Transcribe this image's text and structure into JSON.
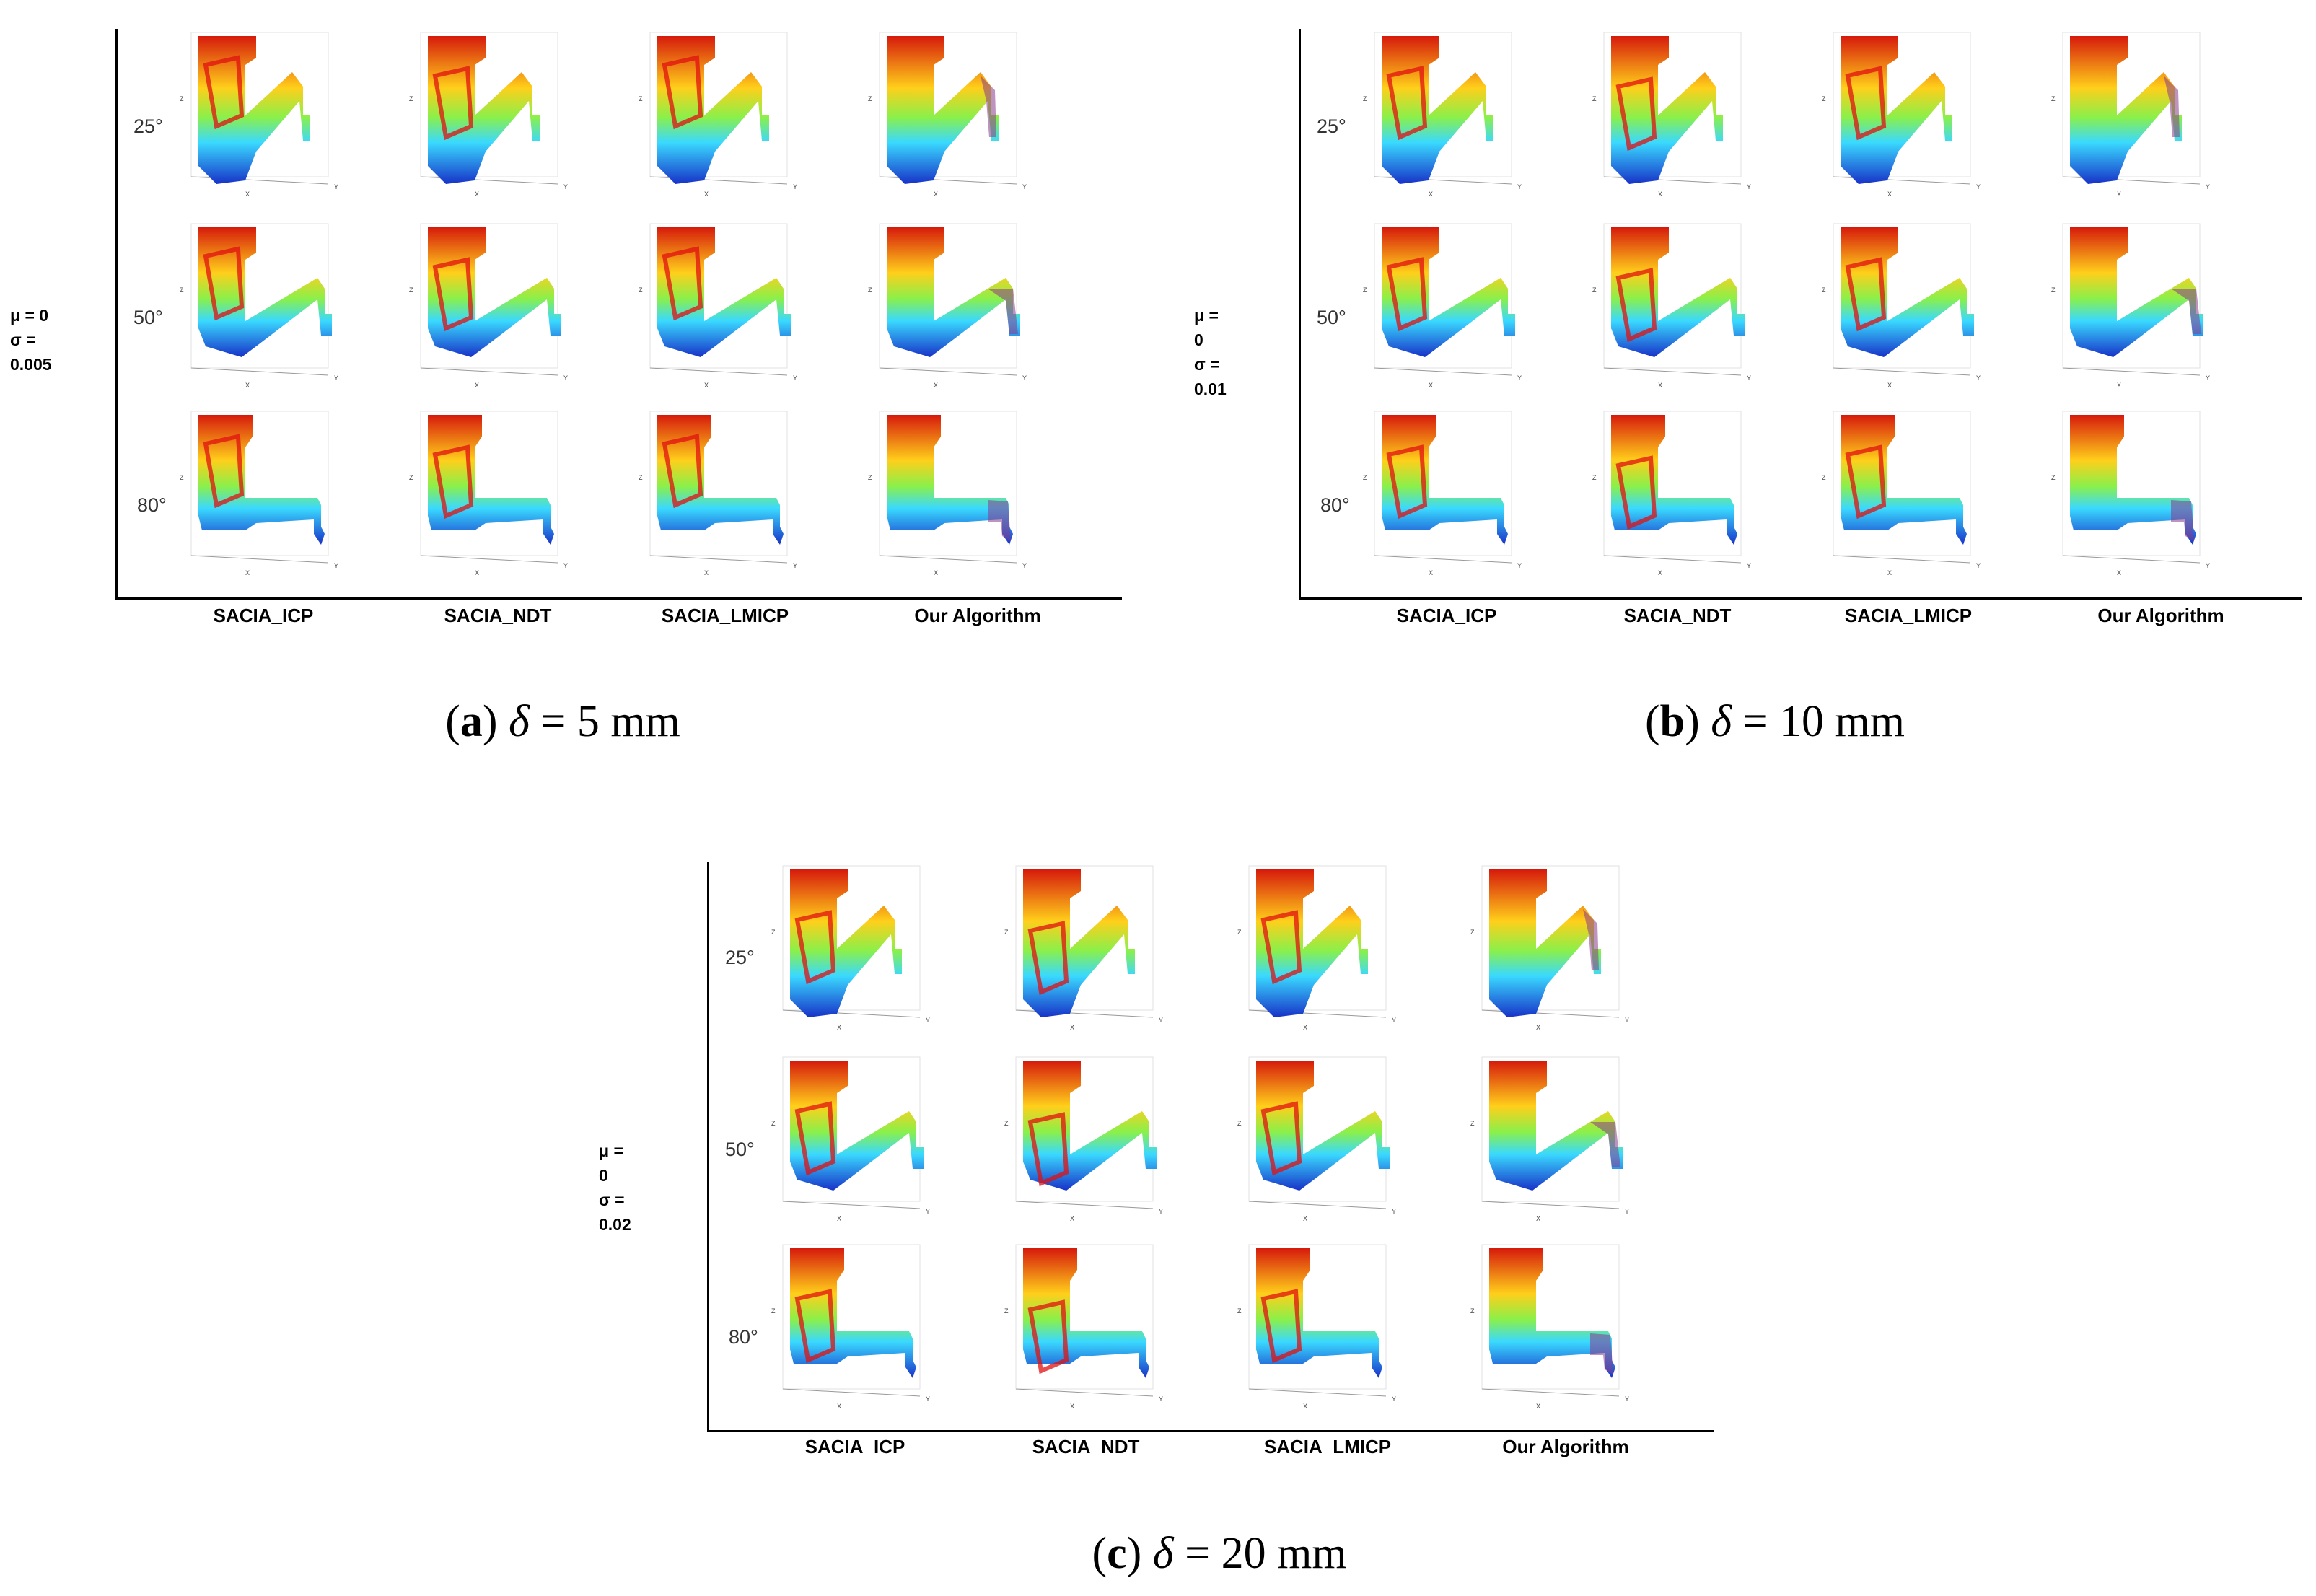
{
  "panels": [
    {
      "id": "a",
      "noise": {
        "mu": "μ = 0",
        "sigma": "σ = 0.005"
      },
      "caption": {
        "label": "a",
        "symbol": "δ",
        "text": " = 5 mm"
      }
    },
    {
      "id": "b",
      "noise": {
        "mu": "μ = 0",
        "sigma": "σ = 0.01"
      },
      "caption": {
        "label": "b",
        "symbol": "δ",
        "text": " = 10 mm"
      }
    },
    {
      "id": "c",
      "noise": {
        "mu": "μ = 0",
        "sigma": "σ = 0.02"
      },
      "caption": {
        "label": "c",
        "symbol": "δ",
        "text": " = 20 mm"
      }
    }
  ],
  "angles": [
    "25°",
    "50°",
    "80°"
  ],
  "algorithms": [
    "SACIA_ICP",
    "SACIA_NDT",
    "SACIA_LMICP",
    "Our Algorithm"
  ],
  "axis_labels": {
    "x": "X",
    "y": "Y",
    "z": "Z"
  },
  "colors": {
    "high": "#d61a0c",
    "mid": "#3ad9ff",
    "low": "#1832c8",
    "overlay": "#e01010",
    "ours_overlay": "#8a3a8a"
  }
}
